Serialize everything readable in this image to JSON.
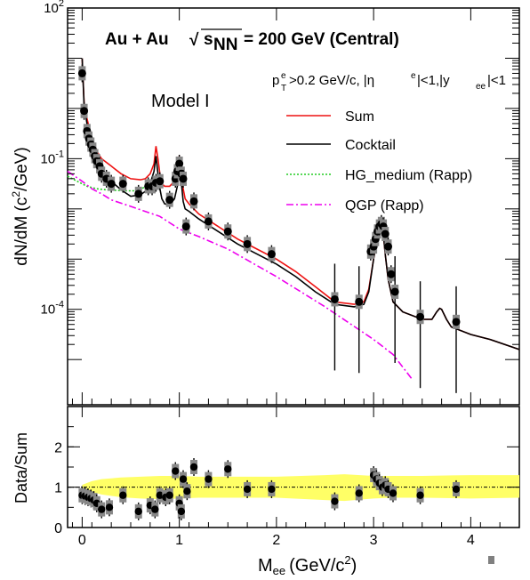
{
  "chart_data": [
    {
      "type": "line",
      "title": "Au + Au",
      "energy_label": "= 200 GeV (Central)",
      "energy_symbol": "s",
      "energy_subscript": "NN",
      "xlabel": "M",
      "xlabel_sub": "ee",
      "xlabel_unit": "(GeV/c",
      "xlabel_unit_sup": "2",
      "xlabel_close": ")",
      "ylabel": "dN/dM (c",
      "ylabel_sup": "2",
      "ylabel_rest": "/GeV)",
      "log_y": true,
      "xlim": [
        -0.15,
        4.5
      ],
      "ylim_log10": [
        -5.9,
        2
      ],
      "y_ticks": [
        {
          "base": "10",
          "exp": "2",
          "value": 2
        },
        {
          "base": "10",
          "exp": "-1",
          "value": -1
        },
        {
          "base": "10",
          "exp": "-4",
          "value": -4
        }
      ],
      "x_ticks": [
        0,
        1,
        2,
        3,
        4
      ],
      "x_tick_labels": [
        "0",
        "1",
        "2",
        "3",
        "4"
      ],
      "annotation_model": "Model  I",
      "cuts": {
        "p": "p",
        "p_sup": "e",
        "p_sub": "T",
        "rest1": ">0.2 GeV/c, |η",
        "eta_sup": "e",
        "rest2": "|<1,|y",
        "y_sub": "ee",
        "rest3": "|<1"
      },
      "legend_position": "top-right",
      "series": [
        {
          "name": "Sum",
          "color": "#ee1111",
          "style": "solid",
          "x": [
            0.0,
            0.02,
            0.05,
            0.1,
            0.15,
            0.2,
            0.3,
            0.4,
            0.5,
            0.6,
            0.65,
            0.7,
            0.74,
            0.76,
            0.78,
            0.8,
            0.82,
            0.85,
            0.9,
            0.95,
            0.98,
            1.0,
            1.02,
            1.04,
            1.06,
            1.1,
            1.2,
            1.4,
            1.6,
            1.8,
            2.0,
            2.2,
            2.4,
            2.6,
            2.8,
            2.9,
            2.95,
            3.0,
            3.05,
            3.08,
            3.1,
            3.12,
            3.15,
            3.2,
            3.3,
            3.5,
            3.6,
            3.65,
            3.68,
            3.7,
            3.75,
            3.8,
            4.0,
            4.2,
            4.5
          ],
          "y": [
            1.0,
            0.1,
            -0.2,
            -0.6,
            -0.85,
            -1.0,
            -1.15,
            -1.3,
            -1.4,
            -1.42,
            -1.4,
            -1.3,
            -1.1,
            -0.75,
            -1.0,
            -1.3,
            -1.5,
            -1.55,
            -1.55,
            -1.45,
            -1.25,
            -0.95,
            -1.2,
            -1.6,
            -1.8,
            -1.9,
            -2.1,
            -2.35,
            -2.6,
            -2.8,
            -3.0,
            -3.25,
            -3.55,
            -3.85,
            -3.9,
            -3.85,
            -3.6,
            -3.0,
            -2.4,
            -2.2,
            -2.5,
            -2.9,
            -3.4,
            -3.85,
            -4.05,
            -4.2,
            -4.2,
            -4.05,
            -3.98,
            -4.0,
            -4.2,
            -4.35,
            -4.5,
            -4.6,
            -4.8
          ]
        },
        {
          "name": "Cocktail",
          "color": "#000000",
          "style": "solid",
          "x": [
            0.0,
            0.02,
            0.05,
            0.1,
            0.15,
            0.2,
            0.3,
            0.4,
            0.5,
            0.6,
            0.65,
            0.7,
            0.74,
            0.76,
            0.78,
            0.8,
            0.82,
            0.85,
            0.9,
            0.95,
            0.98,
            1.0,
            1.02,
            1.04,
            1.06,
            1.1,
            1.2,
            1.4,
            1.6,
            1.8,
            2.0,
            2.2,
            2.4,
            2.6,
            2.8,
            2.9,
            2.95,
            3.0,
            3.05,
            3.08,
            3.1,
            3.12,
            3.15,
            3.2,
            3.3,
            3.5,
            3.6,
            3.65,
            3.68,
            3.7,
            3.75,
            3.8,
            4.0,
            4.2,
            4.5
          ],
          "y": [
            1.0,
            0.05,
            -0.3,
            -0.75,
            -1.05,
            -1.25,
            -1.45,
            -1.62,
            -1.75,
            -1.72,
            -1.65,
            -1.5,
            -1.25,
            -0.95,
            -1.3,
            -1.6,
            -1.8,
            -1.9,
            -1.92,
            -1.8,
            -1.55,
            -1.1,
            -1.45,
            -1.85,
            -2.0,
            -2.05,
            -2.2,
            -2.45,
            -2.7,
            -2.9,
            -3.1,
            -3.35,
            -3.65,
            -3.9,
            -3.95,
            -3.9,
            -3.65,
            -3.0,
            -2.4,
            -2.2,
            -2.5,
            -2.9,
            -3.4,
            -3.85,
            -4.05,
            -4.2,
            -4.2,
            -4.05,
            -3.98,
            -4.0,
            -4.2,
            -4.35,
            -4.5,
            -4.6,
            -4.8
          ]
        },
        {
          "name": "HG_medium (Rapp)",
          "color": "#22cc22",
          "style": "dotted",
          "x": [
            -0.15,
            -0.05,
            0.05,
            0.15,
            0.25,
            0.35,
            0.45,
            0.55,
            0.6,
            0.65,
            0.7,
            0.72,
            0.75
          ],
          "y": [
            -1.35,
            -1.45,
            -1.55,
            -1.6,
            -1.62,
            -1.63,
            -1.64,
            -1.64,
            -1.62,
            -1.55,
            -1.45,
            -1.4,
            -1.55
          ]
        },
        {
          "name": "QGP (Rapp)",
          "color": "#ee00ee",
          "style": "dashdot",
          "x": [
            -0.15,
            0.0,
            0.1,
            0.2,
            0.3,
            0.5,
            0.8,
            1.0,
            1.2,
            1.5,
            2.0,
            2.5,
            3.0,
            3.2,
            3.4
          ],
          "y": [
            -1.25,
            -1.45,
            -1.6,
            -1.7,
            -1.82,
            -1.95,
            -2.15,
            -2.4,
            -2.55,
            -2.8,
            -3.35,
            -3.95,
            -4.6,
            -4.9,
            -5.4
          ]
        }
      ],
      "points": [
        {
          "x": 0.0,
          "y": 0.7
        },
        {
          "x": 0.02,
          "y": -0.05
        },
        {
          "x": 0.05,
          "y": -0.45
        },
        {
          "x": 0.07,
          "y": -0.6
        },
        {
          "x": 0.09,
          "y": -0.72
        },
        {
          "x": 0.11,
          "y": -0.82
        },
        {
          "x": 0.13,
          "y": -0.95
        },
        {
          "x": 0.15,
          "y": -1.05
        },
        {
          "x": 0.18,
          "y": -1.15
        },
        {
          "x": 0.2,
          "y": -1.3
        },
        {
          "x": 0.25,
          "y": -1.4
        },
        {
          "x": 0.3,
          "y": -1.5
        },
        {
          "x": 0.42,
          "y": -1.5
        },
        {
          "x": 0.58,
          "y": -1.7
        },
        {
          "x": 0.68,
          "y": -1.55
        },
        {
          "x": 0.72,
          "y": -1.55
        },
        {
          "x": 0.76,
          "y": -1.48
        },
        {
          "x": 0.8,
          "y": -1.45
        },
        {
          "x": 0.9,
          "y": -1.82
        },
        {
          "x": 0.96,
          "y": -1.4
        },
        {
          "x": 0.98,
          "y": -1.25
        },
        {
          "x": 1.0,
          "y": -1.1
        },
        {
          "x": 1.02,
          "y": -1.3
        },
        {
          "x": 1.04,
          "y": -1.4
        },
        {
          "x": 1.07,
          "y": -2.35
        },
        {
          "x": 1.15,
          "y": -1.85
        },
        {
          "x": 1.3,
          "y": -2.25
        },
        {
          "x": 1.5,
          "y": -2.45
        },
        {
          "x": 1.7,
          "y": -2.7
        },
        {
          "x": 1.95,
          "y": -2.9
        },
        {
          "x": 2.6,
          "y": -3.8
        },
        {
          "x": 2.85,
          "y": -3.85
        },
        {
          "x": 2.97,
          "y": -2.85
        },
        {
          "x": 3.0,
          "y": -2.75
        },
        {
          "x": 3.02,
          "y": -2.6
        },
        {
          "x": 3.04,
          "y": -2.45
        },
        {
          "x": 3.06,
          "y": -2.35
        },
        {
          "x": 3.08,
          "y": -2.3
        },
        {
          "x": 3.1,
          "y": -2.35
        },
        {
          "x": 3.12,
          "y": -2.5
        },
        {
          "x": 3.15,
          "y": -2.75
        },
        {
          "x": 3.18,
          "y": -3.3
        },
        {
          "x": 3.22,
          "y": -3.65
        },
        {
          "x": 3.48,
          "y": -4.15
        },
        {
          "x": 3.85,
          "y": -4.25
        }
      ]
    },
    {
      "type": "scatter",
      "ylabel": "Data/Sum",
      "xlim": [
        -0.15,
        4.5
      ],
      "ylim": [
        0,
        3
      ],
      "y_ticks": [
        0,
        1,
        2
      ],
      "y_tick_labels": [
        "0",
        "1",
        "2"
      ],
      "reference_line": 1,
      "band_color": "#ffff66",
      "band": {
        "x": [
          0.0,
          0.1,
          0.2,
          0.4,
          0.6,
          0.8,
          1.0,
          1.2,
          1.5,
          2.0,
          2.5,
          2.7,
          3.0,
          3.2,
          3.5,
          4.0,
          4.5
        ],
        "lower": [
          0.92,
          0.88,
          0.82,
          0.75,
          0.72,
          0.7,
          0.72,
          0.74,
          0.74,
          0.74,
          0.68,
          0.66,
          0.72,
          0.74,
          0.74,
          0.72,
          0.74
        ],
        "upper": [
          1.06,
          1.15,
          1.2,
          1.24,
          1.26,
          1.28,
          1.28,
          1.26,
          1.26,
          1.26,
          1.3,
          1.32,
          1.28,
          1.28,
          1.28,
          1.3,
          1.3
        ]
      },
      "points": [
        {
          "x": 0.0,
          "y": 0.8
        },
        {
          "x": 0.03,
          "y": 0.78
        },
        {
          "x": 0.06,
          "y": 0.75
        },
        {
          "x": 0.09,
          "y": 0.72
        },
        {
          "x": 0.12,
          "y": 0.68
        },
        {
          "x": 0.15,
          "y": 0.6
        },
        {
          "x": 0.2,
          "y": 0.45
        },
        {
          "x": 0.28,
          "y": 0.5
        },
        {
          "x": 0.42,
          "y": 0.8
        },
        {
          "x": 0.58,
          "y": 0.4
        },
        {
          "x": 0.7,
          "y": 0.55
        },
        {
          "x": 0.75,
          "y": 0.45
        },
        {
          "x": 0.8,
          "y": 0.8
        },
        {
          "x": 0.86,
          "y": 0.75
        },
        {
          "x": 0.9,
          "y": 0.8
        },
        {
          "x": 0.96,
          "y": 1.4
        },
        {
          "x": 1.0,
          "y": 0.6
        },
        {
          "x": 1.02,
          "y": 0.4
        },
        {
          "x": 1.04,
          "y": 1.2
        },
        {
          "x": 1.08,
          "y": 0.9
        },
        {
          "x": 1.15,
          "y": 1.5
        },
        {
          "x": 1.3,
          "y": 1.2
        },
        {
          "x": 1.5,
          "y": 1.45
        },
        {
          "x": 1.7,
          "y": 0.95
        },
        {
          "x": 1.95,
          "y": 0.95
        },
        {
          "x": 2.6,
          "y": 0.65
        },
        {
          "x": 2.85,
          "y": 0.85
        },
        {
          "x": 3.0,
          "y": 1.3
        },
        {
          "x": 3.03,
          "y": 1.2
        },
        {
          "x": 3.06,
          "y": 1.1
        },
        {
          "x": 3.09,
          "y": 1.0
        },
        {
          "x": 3.12,
          "y": 1.05
        },
        {
          "x": 3.15,
          "y": 0.95
        },
        {
          "x": 3.2,
          "y": 0.85
        },
        {
          "x": 3.48,
          "y": 0.8
        },
        {
          "x": 3.85,
          "y": 0.95
        }
      ]
    }
  ]
}
